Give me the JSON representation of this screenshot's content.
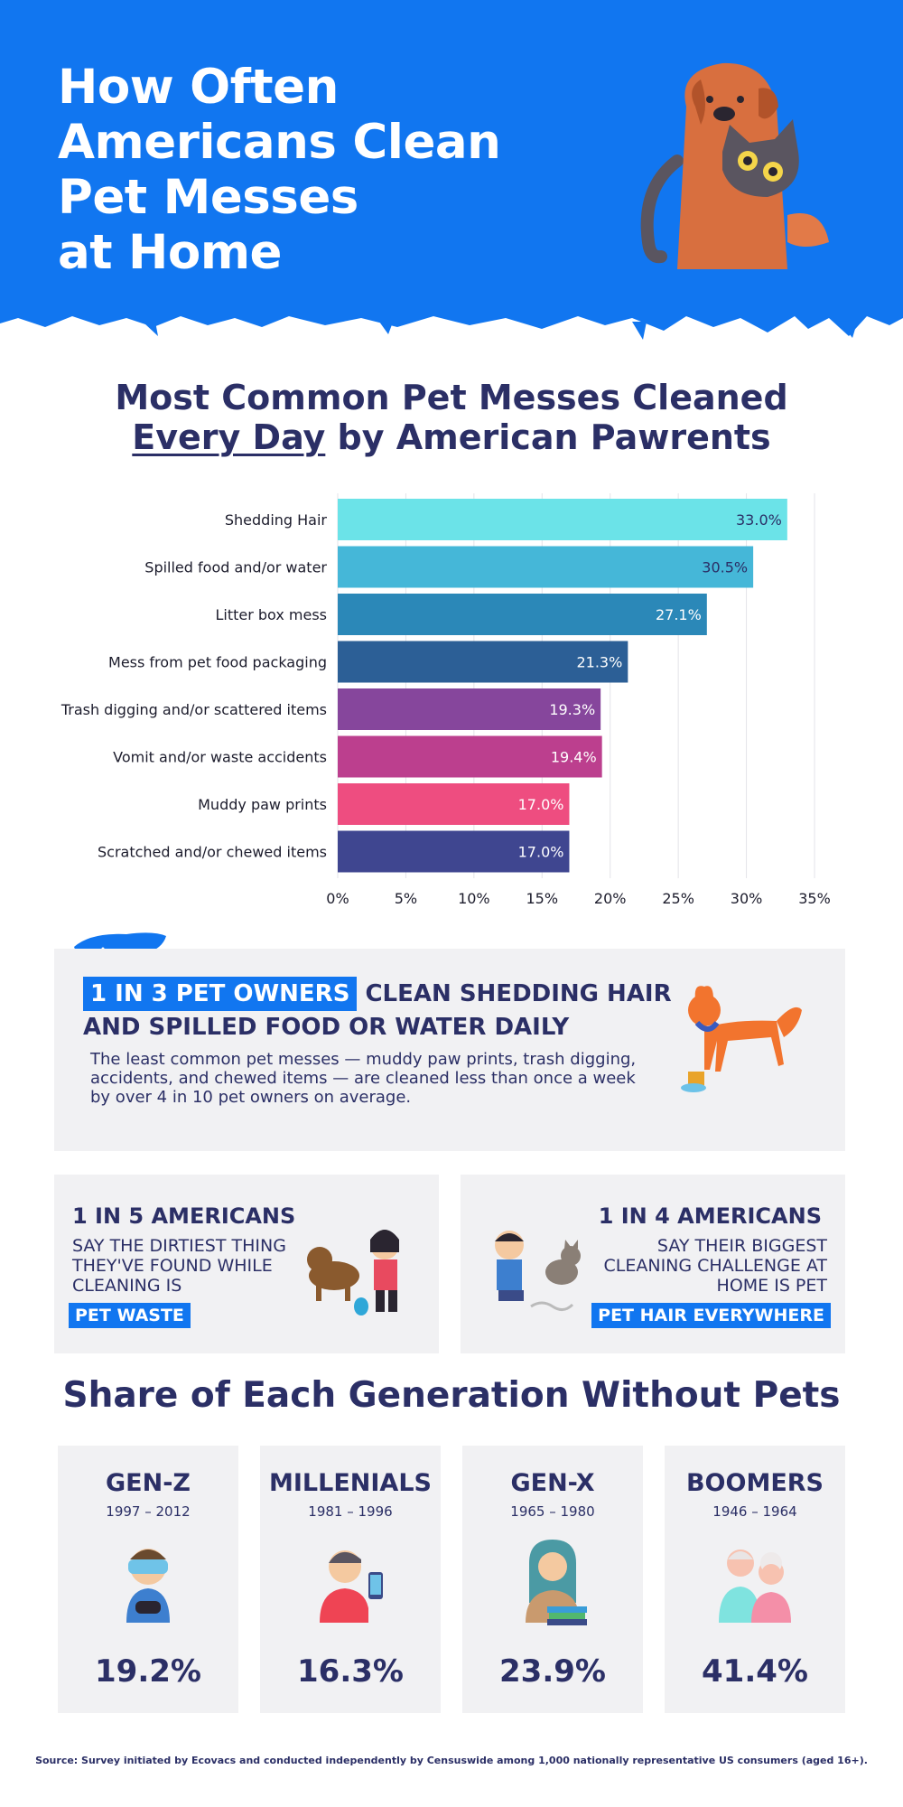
{
  "header": {
    "title_lines": [
      "How Often",
      "Americans Clean",
      "Pet Messes",
      "at Home"
    ],
    "bg_color": "#1176f0"
  },
  "section1": {
    "title_line1": "Most Common Pet Messes Cleaned",
    "title_underlined": "Every Day",
    "title_rest": " by American Pawrents"
  },
  "chart_data": {
    "type": "bar",
    "orientation": "horizontal",
    "categories": [
      "Shedding Hair",
      "Spilled food and/or water",
      "Litter box mess",
      "Mess from pet food packaging",
      "Trash digging and/or scattered items",
      "Vomit and/or waste accidents",
      "Muddy paw prints",
      "Scratched and/or chewed items"
    ],
    "values": [
      33.0,
      30.5,
      27.1,
      21.3,
      19.3,
      19.4,
      17.0,
      17.0
    ],
    "value_labels": [
      "33.0%",
      "30.5%",
      "27.1%",
      "21.3%",
      "19.3%",
      "19.4%",
      "17.0%",
      "17.0%"
    ],
    "colors": [
      "#6be3e8",
      "#45b7d8",
      "#2b88b8",
      "#2c5f96",
      "#86469c",
      "#bc3f8e",
      "#ee4d80",
      "#3f4690"
    ],
    "value_label_colors": [
      "#2b2f66",
      "#2b2f66",
      "#ffffff",
      "#ffffff",
      "#ffffff",
      "#ffffff",
      "#ffffff",
      "#ffffff"
    ],
    "xlim": [
      0,
      35
    ],
    "xticks": [
      0,
      5,
      10,
      15,
      20,
      25,
      30,
      35
    ],
    "xtick_labels": [
      "0%",
      "5%",
      "10%",
      "15%",
      "20%",
      "25%",
      "30%",
      "35%"
    ],
    "grid": true
  },
  "highlight": {
    "badge": "1 IN 3 PET OWNERS",
    "line1_rest": " CLEAN SHEDDING HAIR",
    "line2": "AND SPILLED FOOD OR WATER DAILY",
    "body": "The least common pet messes — muddy paw prints, trash digging, accidents, and chewed items — are cleaned less than once a week by over 4 in 10 pet owners on average."
  },
  "stats": [
    {
      "title": "1 IN 5 AMERICANS",
      "text": "SAY THE DIRTIEST THING THEY'VE FOUND WHILE CLEANING IS",
      "badge": "PET WASTE"
    },
    {
      "title": "1 IN 4 AMERICANS",
      "text": "SAY THEIR BIGGEST CLEANING CHALLENGE AT HOME IS PET",
      "badge": "PET HAIR EVERYWHERE"
    }
  ],
  "section2": {
    "title": "Share of Each Generation Without Pets"
  },
  "generations": [
    {
      "name": "GEN-Z",
      "years": "1997 – 2012",
      "value": "19.2%",
      "icon": "gamer-vr-icon"
    },
    {
      "name": "MILLENIALS",
      "years": "1981 – 1996",
      "value": "16.3%",
      "icon": "phone-user-icon"
    },
    {
      "name": "GEN-X",
      "years": "1965 – 1980",
      "value": "23.9%",
      "icon": "reader-books-icon"
    },
    {
      "name": "BOOMERS",
      "years": "1946 – 1964",
      "value": "41.4%",
      "icon": "elderly-couple-icon"
    }
  ],
  "source": "Source: Survey initiated by Ecovacs and conducted independently by Censuswide among 1,000 nationally representative US consumers (aged 16+)."
}
